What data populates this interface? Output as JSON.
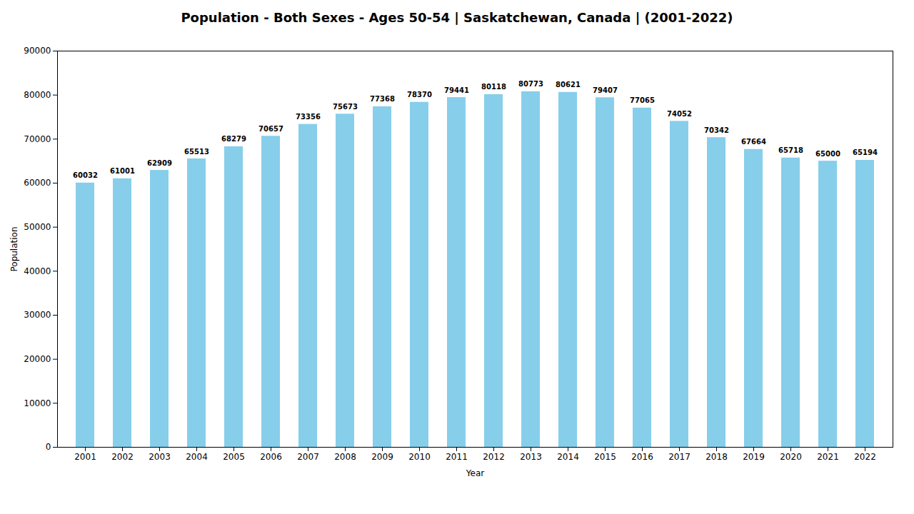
{
  "chart_data": {
    "type": "bar",
    "title": "Population - Both Sexes - Ages 50-54 | Saskatchewan, Canada |  (2001-2022)",
    "x_label": "Year",
    "y_label": "Population",
    "categories": [
      "2001",
      "2002",
      "2003",
      "2004",
      "2005",
      "2006",
      "2007",
      "2008",
      "2009",
      "2010",
      "2011",
      "2012",
      "2013",
      "2014",
      "2015",
      "2016",
      "2017",
      "2018",
      "2019",
      "2020",
      "2021",
      "2022"
    ],
    "values": [
      60032,
      61001,
      62909,
      65513,
      68279,
      70657,
      73356,
      75673,
      77368,
      78370,
      79441,
      80118,
      80773,
      80621,
      79407,
      77065,
      74052,
      70342,
      67664,
      65718,
      65000,
      65194
    ],
    "color": "#87CEEB",
    "ylim": [
      0,
      90000
    ],
    "yticks": [
      0,
      10000,
      20000,
      30000,
      40000,
      50000,
      60000,
      70000,
      80000,
      90000
    ],
    "grid": false,
    "data_labels": true
  }
}
